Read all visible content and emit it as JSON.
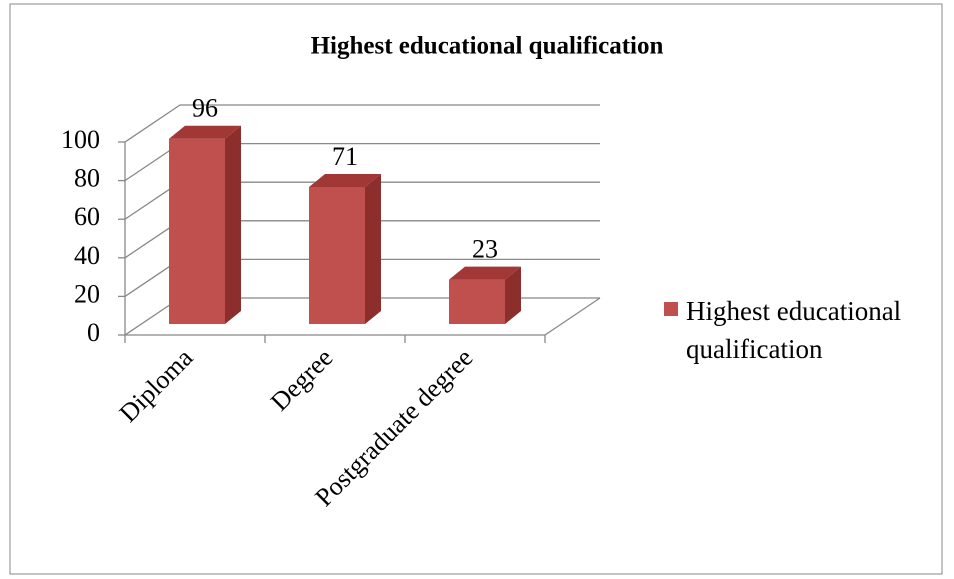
{
  "chart_data": {
    "type": "bar",
    "title": "Highest educational qualification",
    "categories": [
      "Diploma",
      "Degree",
      "Postgraduate degree"
    ],
    "series": [
      {
        "name": "Highest educational qualification",
        "color": "#c0504d",
        "values": [
          96,
          71,
          23
        ]
      }
    ],
    "ylim": [
      0,
      100
    ],
    "yticks": [
      0,
      20,
      40,
      60,
      80,
      100
    ],
    "grid": true,
    "legend": "right"
  }
}
